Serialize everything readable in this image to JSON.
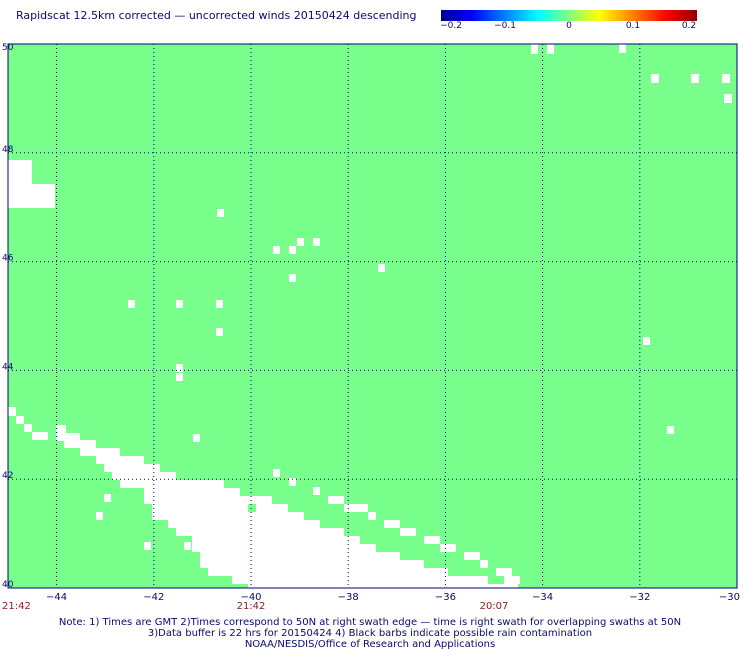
{
  "title": "Rapidscat 12.5km corrected — uncorrected winds 20150424 descending",
  "colors": {
    "land_fill": "#78ff8c",
    "missing": "#ffffff",
    "grid": "#000080",
    "text": "#0a0a6e",
    "time_text": "#8b1a1a"
  },
  "colorbar": {
    "ticks": [
      "−0.2",
      "−0.1",
      "0",
      "0.1",
      "0.2"
    ],
    "tick_values": [
      -0.2,
      -0.1,
      0,
      0.1,
      0.2
    ],
    "range": [
      -0.2,
      0.2
    ]
  },
  "map": {
    "lon_range": [
      -45,
      -30
    ],
    "lat_range": [
      40,
      50
    ],
    "lon_ticks": [
      -44,
      -42,
      -40,
      -38,
      -36,
      -34,
      -32,
      -30
    ],
    "lon_labels": [
      "−44",
      "−42",
      "−40",
      "−38",
      "−36",
      "−34",
      "−32",
      "−30"
    ],
    "lat_ticks": [
      40,
      42,
      44,
      46,
      48,
      50
    ],
    "lat_labels": [
      "40",
      "42",
      "44",
      "46",
      "48",
      "50"
    ],
    "times": [
      {
        "label": "21:42",
        "lon": -45
      },
      {
        "label": "21:42",
        "lon": -40
      },
      {
        "label": "20:07",
        "lon": -35
      }
    ]
  },
  "notes": {
    "line1": "Note: 1) Times are GMT 2)Times correspond to 50N at right swath edge — time is right swath for overlapping swaths at 50N",
    "line2": "3)Data buffer is 22 hrs for 20150424 4) Black barbs indicate possible rain contamination",
    "line3": "NOAA/NESDIS/Office of Research and Applications"
  }
}
